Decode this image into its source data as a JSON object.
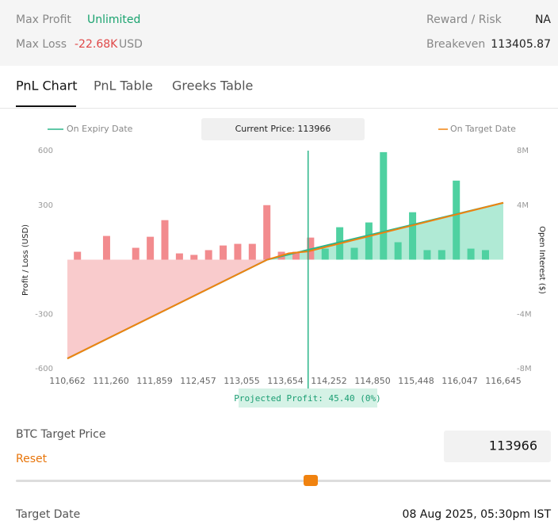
{
  "header": {
    "max_profit_label": "Max Profit",
    "max_profit": "Unlimited",
    "max_loss_label": "Max Loss",
    "max_loss": "-22.68K",
    "max_loss_unit": "USD",
    "reward_risk_label": "Reward / Risk",
    "reward_risk": "NA",
    "breakeven_label": "Breakeven",
    "breakeven": "113405.87"
  },
  "tabs": [
    "PnL Chart",
    "PnL Table",
    "Greeks Table"
  ],
  "chart_data": {
    "type": "bar",
    "current_price_label": "Current Price:",
    "current_price": 113966,
    "projected_profit": "Projected Profit: 45.40 (0%)",
    "y_label": "Profit / Loss (USD)",
    "y2_label": "Open Interest ($)",
    "xlim": [
      110662,
      116645
    ],
    "ylim": [
      -600,
      600
    ],
    "y2lim": [
      -8000000,
      8000000
    ],
    "xticks": [
      {
        "value": 110662,
        "label": "110,662"
      },
      {
        "value": 111260,
        "label": "111,260"
      },
      {
        "value": 111859,
        "label": "111,859"
      },
      {
        "value": 112457,
        "label": "112,457"
      },
      {
        "value": 113055,
        "label": "113,055"
      },
      {
        "value": 113654,
        "label": "113,654"
      },
      {
        "value": 114252,
        "label": "114,252"
      },
      {
        "value": 114850,
        "label": "114,850"
      },
      {
        "value": 115448,
        "label": "115,448"
      },
      {
        "value": 116047,
        "label": "116,047"
      },
      {
        "value": 116645,
        "label": "116,645"
      }
    ],
    "yticks": [
      600,
      300,
      -300,
      -600
    ],
    "y2ticks": [
      {
        "value": 8000000,
        "label": "8M"
      },
      {
        "value": 4000000,
        "label": "4M"
      },
      {
        "value": -4000000,
        "label": "-4M"
      },
      {
        "value": -8000000,
        "label": "-8M"
      }
    ],
    "series": [
      {
        "type": "bar",
        "axis": "y2",
        "color": "#f28b8e",
        "x": [
          110800,
          111200,
          111600,
          111800,
          112000,
          112200,
          112400,
          112600,
          112800,
          113000,
          113200,
          113400,
          113600,
          113800,
          114000
        ],
        "values": [
          580000,
          1740000,
          870000,
          1680000,
          2900000,
          460000,
          350000,
          700000,
          1040000,
          1160000,
          1160000,
          4000000,
          580000,
          580000,
          1620000
        ]
      },
      {
        "type": "bar",
        "axis": "y2",
        "color": "#4fd1a1",
        "x": [
          114200,
          114400,
          114600,
          114800,
          115000,
          115200,
          115400,
          115600,
          115800,
          116000,
          116200,
          116400
        ],
        "values": [
          810000,
          2380000,
          870000,
          2730000,
          7890000,
          1280000,
          3480000,
          700000,
          700000,
          5800000,
          810000,
          700000
        ]
      },
      {
        "type": "line",
        "name": "On Expiry Date",
        "color": "#2bb58a",
        "x": [
          110662,
          113406,
          116645
        ],
        "values": [
          -544,
          0,
          313
        ]
      },
      {
        "type": "line",
        "name": "On Target Date",
        "color": "#f0820f",
        "x": [
          110662,
          113406,
          113700,
          113966,
          116645
        ],
        "values": [
          -544,
          0,
          35,
          45.4,
          313
        ]
      }
    ]
  },
  "controls": {
    "target_price_label": "BTC Target Price",
    "reset": "Reset",
    "target_price": "113966",
    "target_date_label": "Target Date",
    "target_date": "08 Aug 2025, 05:30pm IST"
  }
}
